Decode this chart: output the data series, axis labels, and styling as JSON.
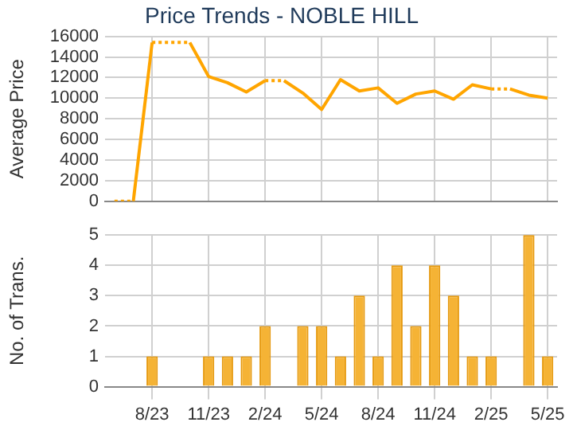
{
  "chart_data": [
    {
      "type": "line",
      "title": "Price Trends - NOBLE HILL",
      "ylabel": "Average Price",
      "categories": [
        null,
        null,
        null,
        null,
        null,
        null,
        null,
        null,
        null,
        null,
        null,
        null,
        null,
        null,
        null,
        null,
        null,
        null,
        null,
        null,
        null,
        null,
        null,
        null
      ],
      "series": [
        {
          "color": "#ffa500",
          "values": [
            0,
            0,
            15400,
            15400,
            15400,
            12100,
            11500,
            10600,
            11700,
            11700,
            10500,
            8900,
            11800,
            10700,
            11000,
            9500,
            10400,
            10700,
            9900,
            11300,
            10900,
            10900,
            10300,
            10000
          ]
        }
      ],
      "ylim": [
        0,
        16000
      ],
      "yticks": [
        0,
        2000,
        4000,
        6000,
        8000,
        10000,
        12000,
        14000,
        16000
      ],
      "grid": true,
      "tick_labels": "y",
      "marker": "none"
    },
    {
      "type": "bar",
      "ylabel": "No. of Trans.",
      "categories": [
        null,
        null,
        "8/23",
        null,
        null,
        "11/23",
        null,
        null,
        "2/24",
        null,
        null,
        "5/24",
        null,
        null,
        "8/24",
        null,
        null,
        "11/24",
        null,
        null,
        "2/25",
        null,
        null,
        "5/25"
      ],
      "series": [
        {
          "color": "#f5b335",
          "values": [
            0,
            0,
            1,
            0,
            0,
            1,
            1,
            1,
            2,
            0,
            2,
            2,
            1,
            3,
            1,
            4,
            2,
            4,
            3,
            1,
            1,
            0,
            5,
            1
          ]
        }
      ],
      "ylim": [
        0,
        5
      ],
      "yticks": [
        0,
        1,
        2,
        3,
        4,
        5
      ],
      "grid": true
    }
  ]
}
